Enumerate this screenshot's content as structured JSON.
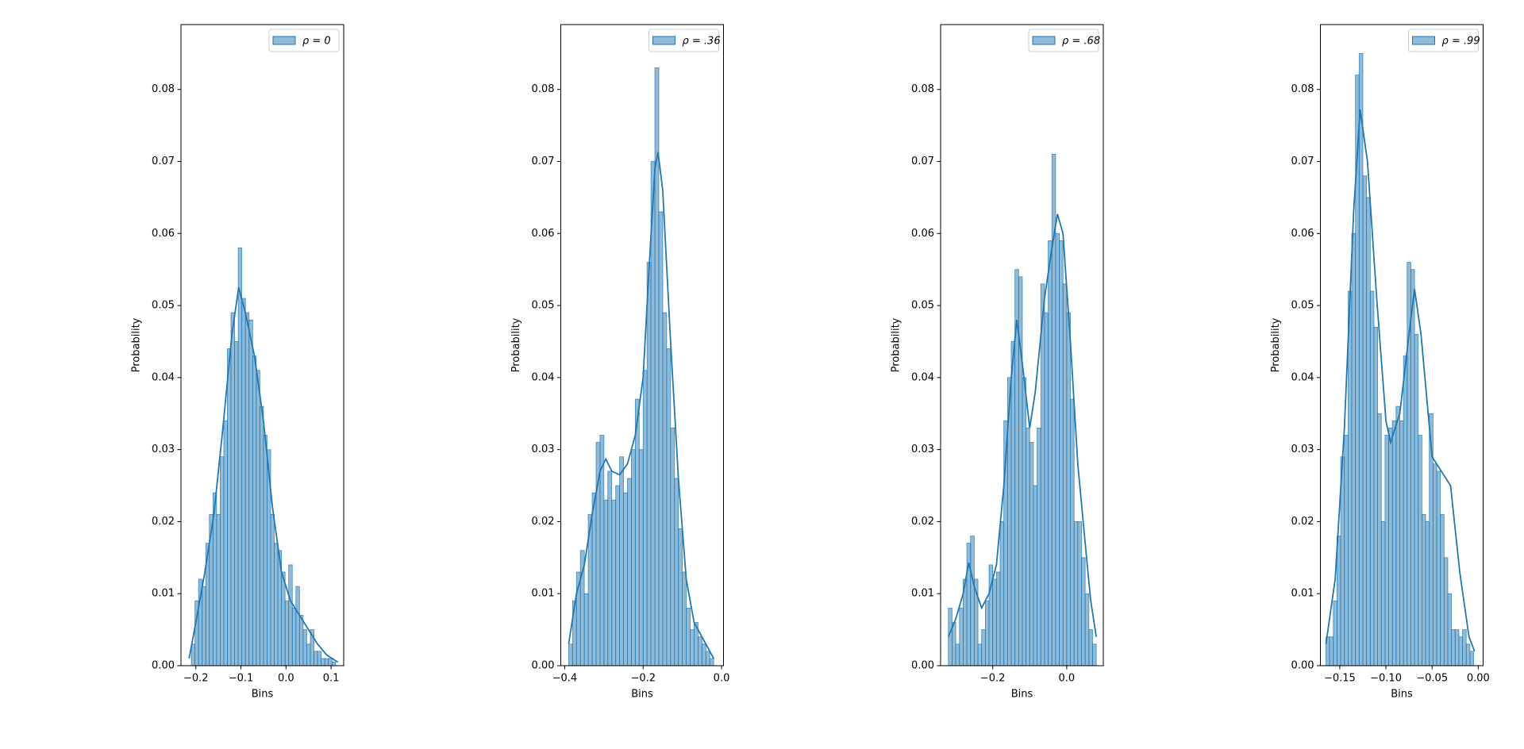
{
  "chart_data": [
    {
      "type": "histogram",
      "color": "#1f77b4",
      "legend_label": "ρ = 0",
      "legend": "upper right",
      "x_label": "Bins",
      "y_label": "Probability",
      "xlim": [
        -0.233,
        0.128
      ],
      "ylim": [
        0,
        0.089
      ],
      "xticks": [
        {
          "value": -0.2,
          "label": "−0.2"
        },
        {
          "value": -0.1,
          "label": "−0.1"
        },
        {
          "value": 0,
          "label": "0.0"
        },
        {
          "value": 0.1,
          "label": "0.1"
        }
      ],
      "yticks": [
        {
          "value": 0,
          "label": "0.00"
        },
        {
          "value": 0.01,
          "label": "0.01"
        },
        {
          "value": 0.02,
          "label": "0.02"
        },
        {
          "value": 0.03,
          "label": "0.03"
        },
        {
          "value": 0.04,
          "label": "0.04"
        },
        {
          "value": 0.05,
          "label": "0.05"
        },
        {
          "value": 0.06,
          "label": "0.06"
        },
        {
          "value": 0.07,
          "label": "0.07"
        },
        {
          "value": 0.08,
          "label": "0.08"
        }
      ],
      "bins": [
        -0.21,
        -0.202,
        -0.194,
        -0.186,
        -0.178,
        -0.17,
        -0.162,
        -0.154,
        -0.146,
        -0.138,
        -0.13,
        -0.122,
        -0.114,
        -0.106,
        -0.098,
        -0.09,
        -0.082,
        -0.074,
        -0.066,
        -0.058,
        -0.05,
        -0.042,
        -0.034,
        -0.026,
        -0.018,
        -0.01,
        -0.002,
        0.006,
        0.014,
        0.022,
        0.03,
        0.038,
        0.046,
        0.054,
        0.062,
        0.07,
        0.078,
        0.086,
        0.094,
        0.102,
        0.11
      ],
      "values": [
        0.003,
        0.009,
        0.012,
        0.011,
        0.017,
        0.021,
        0.024,
        0.021,
        0.029,
        0.034,
        0.044,
        0.049,
        0.045,
        0.058,
        0.051,
        0.049,
        0.048,
        0.043,
        0.041,
        0.036,
        0.032,
        0.03,
        0.021,
        0.017,
        0.016,
        0.013,
        0.009,
        0.014,
        0.008,
        0.011,
        0.007,
        0.005,
        0.003,
        0.005,
        0.002,
        0.002,
        0.001,
        0.001,
        0.001,
        0.0005
      ],
      "kde": {
        "x": [
          -0.215,
          -0.2,
          -0.18,
          -0.16,
          -0.14,
          -0.12,
          -0.105,
          -0.09,
          -0.07,
          -0.05,
          -0.03,
          -0.01,
          0.01,
          0.03,
          0.05,
          0.07,
          0.09,
          0.115
        ],
        "values": [
          0.001,
          0.006,
          0.013,
          0.021,
          0.033,
          0.046,
          0.0525,
          0.049,
          0.043,
          0.034,
          0.022,
          0.013,
          0.009,
          0.007,
          0.005,
          0.003,
          0.0015,
          0.0005
        ]
      }
    },
    {
      "type": "histogram",
      "color": "#1f77b4",
      "legend_label": "ρ = .36",
      "legend": "upper right",
      "x_label": "Bins",
      "y_label": "Probability",
      "xlim": [
        -0.41,
        0.005
      ],
      "ylim": [
        0,
        0.089
      ],
      "xticks": [
        {
          "value": -0.4,
          "label": "−0.4"
        },
        {
          "value": -0.2,
          "label": "−0.2"
        },
        {
          "value": 0,
          "label": "0.0"
        }
      ],
      "yticks": [
        {
          "value": 0,
          "label": "0.00"
        },
        {
          "value": 0.01,
          "label": "0.01"
        },
        {
          "value": 0.02,
          "label": "0.02"
        },
        {
          "value": 0.03,
          "label": "0.03"
        },
        {
          "value": 0.04,
          "label": "0.04"
        },
        {
          "value": 0.05,
          "label": "0.05"
        },
        {
          "value": 0.06,
          "label": "0.06"
        },
        {
          "value": 0.07,
          "label": "0.07"
        },
        {
          "value": 0.08,
          "label": "0.08"
        }
      ],
      "bins": [
        -0.39,
        -0.38,
        -0.37,
        -0.36,
        -0.35,
        -0.34,
        -0.33,
        -0.32,
        -0.31,
        -0.3,
        -0.29,
        -0.28,
        -0.27,
        -0.26,
        -0.25,
        -0.24,
        -0.23,
        -0.22,
        -0.21,
        -0.2,
        -0.19,
        -0.18,
        -0.17,
        -0.16,
        -0.15,
        -0.14,
        -0.13,
        -0.12,
        -0.11,
        -0.1,
        -0.09,
        -0.08,
        -0.07,
        -0.06,
        -0.05,
        -0.04,
        -0.03,
        -0.02
      ],
      "values": [
        0.003,
        0.009,
        0.013,
        0.016,
        0.01,
        0.021,
        0.024,
        0.031,
        0.032,
        0.023,
        0.027,
        0.023,
        0.025,
        0.029,
        0.024,
        0.026,
        0.03,
        0.037,
        0.03,
        0.041,
        0.056,
        0.07,
        0.083,
        0.063,
        0.049,
        0.044,
        0.033,
        0.026,
        0.019,
        0.013,
        0.008,
        0.005,
        0.006,
        0.004,
        0.003,
        0.002,
        0.001
      ],
      "kde": {
        "x": [
          -0.39,
          -0.37,
          -0.35,
          -0.33,
          -0.31,
          -0.295,
          -0.28,
          -0.26,
          -0.24,
          -0.22,
          -0.2,
          -0.185,
          -0.17,
          -0.162,
          -0.15,
          -0.13,
          -0.11,
          -0.09,
          -0.07,
          -0.05,
          -0.02
        ],
        "values": [
          0.003,
          0.01,
          0.014,
          0.021,
          0.027,
          0.0287,
          0.027,
          0.0265,
          0.028,
          0.032,
          0.04,
          0.055,
          0.069,
          0.0713,
          0.066,
          0.045,
          0.026,
          0.012,
          0.006,
          0.004,
          0.001
        ]
      }
    },
    {
      "type": "histogram",
      "color": "#1f77b4",
      "legend_label": "ρ = .68",
      "legend": "upper right",
      "x_label": "Bins",
      "y_label": "Probability",
      "xlim": [
        -0.341,
        0.099
      ],
      "ylim": [
        0,
        0.089
      ],
      "xticks": [
        {
          "value": -0.2,
          "label": "−0.2"
        },
        {
          "value": 0,
          "label": "0.0"
        }
      ],
      "yticks": [
        {
          "value": 0,
          "label": "0.00"
        },
        {
          "value": 0.01,
          "label": "0.01"
        },
        {
          "value": 0.02,
          "label": "0.02"
        },
        {
          "value": 0.03,
          "label": "0.03"
        },
        {
          "value": 0.04,
          "label": "0.04"
        },
        {
          "value": 0.05,
          "label": "0.05"
        },
        {
          "value": 0.06,
          "label": "0.06"
        },
        {
          "value": 0.07,
          "label": "0.07"
        },
        {
          "value": 0.08,
          "label": "0.08"
        }
      ],
      "bins": [
        -0.32,
        -0.31,
        -0.3,
        -0.29,
        -0.28,
        -0.27,
        -0.26,
        -0.25,
        -0.24,
        -0.23,
        -0.22,
        -0.21,
        -0.2,
        -0.19,
        -0.18,
        -0.17,
        -0.16,
        -0.15,
        -0.14,
        -0.13,
        -0.12,
        -0.11,
        -0.1,
        -0.09,
        -0.08,
        -0.07,
        -0.06,
        -0.05,
        -0.04,
        -0.03,
        -0.02,
        -0.01,
        0,
        0.01,
        0.02,
        0.03,
        0.04,
        0.05,
        0.06,
        0.07,
        0.08
      ],
      "values": [
        0.008,
        0.006,
        0.003,
        0.008,
        0.012,
        0.017,
        0.018,
        0.012,
        0.003,
        0.005,
        0.009,
        0.014,
        0.012,
        0.013,
        0.02,
        0.034,
        0.04,
        0.045,
        0.055,
        0.054,
        0.04,
        0.033,
        0.031,
        0.025,
        0.033,
        0.053,
        0.049,
        0.059,
        0.071,
        0.06,
        0.059,
        0.053,
        0.049,
        0.037,
        0.02,
        0.02,
        0.015,
        0.01,
        0.005,
        0.003
      ],
      "kde": {
        "x": [
          -0.32,
          -0.3,
          -0.28,
          -0.265,
          -0.25,
          -0.23,
          -0.21,
          -0.19,
          -0.17,
          -0.15,
          -0.135,
          -0.12,
          -0.1,
          -0.085,
          -0.06,
          -0.04,
          -0.025,
          -0.01,
          0.01,
          0.03,
          0.05,
          0.065,
          0.08
        ],
        "values": [
          0.004,
          0.0065,
          0.01,
          0.0143,
          0.011,
          0.008,
          0.01,
          0.014,
          0.025,
          0.04,
          0.048,
          0.042,
          0.033,
          0.038,
          0.051,
          0.058,
          0.0627,
          0.06,
          0.045,
          0.028,
          0.017,
          0.009,
          0.004
        ]
      }
    },
    {
      "type": "histogram",
      "color": "#1f77b4",
      "legend_label": "ρ = .99",
      "legend": "upper right",
      "x_label": "Bins",
      "y_label": "Probability",
      "xlim": [
        -0.171,
        0.0053
      ],
      "ylim": [
        0,
        0.089
      ],
      "xticks": [
        {
          "value": -0.15,
          "label": "−0.15"
        },
        {
          "value": -0.1,
          "label": "−0.10"
        },
        {
          "value": -0.05,
          "label": "−0.05"
        },
        {
          "value": 0,
          "label": "0.00"
        }
      ],
      "yticks": [
        {
          "value": 0,
          "label": "0.00"
        },
        {
          "value": 0.01,
          "label": "0.01"
        },
        {
          "value": 0.02,
          "label": "0.02"
        },
        {
          "value": 0.03,
          "label": "0.03"
        },
        {
          "value": 0.04,
          "label": "0.04"
        },
        {
          "value": 0.05,
          "label": "0.05"
        },
        {
          "value": 0.06,
          "label": "0.06"
        },
        {
          "value": 0.07,
          "label": "0.07"
        },
        {
          "value": 0.08,
          "label": "0.08"
        }
      ],
      "bins": [
        -0.165,
        -0.161,
        -0.157,
        -0.153,
        -0.149,
        -0.145,
        -0.141,
        -0.137,
        -0.133,
        -0.129,
        -0.125,
        -0.121,
        -0.117,
        -0.113,
        -0.109,
        -0.105,
        -0.101,
        -0.097,
        -0.093,
        -0.089,
        -0.085,
        -0.081,
        -0.077,
        -0.073,
        -0.069,
        -0.065,
        -0.061,
        -0.057,
        -0.053,
        -0.049,
        -0.045,
        -0.041,
        -0.037,
        -0.033,
        -0.029,
        -0.025,
        -0.021,
        -0.017,
        -0.013,
        -0.009,
        -0.005
      ],
      "values": [
        0.004,
        0.004,
        0.009,
        0.018,
        0.029,
        0.032,
        0.052,
        0.06,
        0.082,
        0.085,
        0.068,
        0.065,
        0.052,
        0.047,
        0.035,
        0.02,
        0.032,
        0.033,
        0.034,
        0.036,
        0.034,
        0.043,
        0.056,
        0.055,
        0.046,
        0.032,
        0.021,
        0.02,
        0.035,
        0.028,
        0.027,
        0.021,
        0.015,
        0.01,
        0.005,
        0.005,
        0.004,
        0.005,
        0.003,
        0.002
      ],
      "kde": {
        "x": [
          -0.165,
          -0.155,
          -0.145,
          -0.135,
          -0.128,
          -0.12,
          -0.11,
          -0.1,
          -0.095,
          -0.085,
          -0.075,
          -0.069,
          -0.062,
          -0.05,
          -0.04,
          -0.03,
          -0.02,
          -0.01,
          -0.004
        ],
        "values": [
          0.003,
          0.012,
          0.033,
          0.063,
          0.0772,
          0.07,
          0.051,
          0.034,
          0.031,
          0.035,
          0.046,
          0.0523,
          0.046,
          0.029,
          0.027,
          0.025,
          0.013,
          0.004,
          0.002
        ]
      }
    }
  ]
}
